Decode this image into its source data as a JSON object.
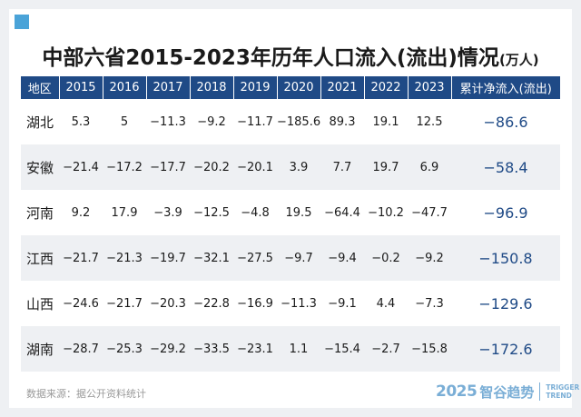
{
  "title": "中部六省2015-2023年历年人口流入(流出)情况",
  "title_unit": "(万人)",
  "columns": [
    "地区",
    "2015",
    "2016",
    "2017",
    "2018",
    "2019",
    "2020",
    "2021",
    "2022",
    "2023",
    "累计净流入(流出)"
  ],
  "rows": [
    [
      "湖北",
      "5.3",
      "5",
      "−11.3",
      "−9.2",
      "−11.7",
      "−185.6",
      "89.3",
      "19.1",
      "12.5",
      "−86.6"
    ],
    [
      "安徽",
      "−21.4",
      "−17.2",
      "−17.7",
      "−20.2",
      "−20.1",
      "3.9",
      "7.7",
      "19.7",
      "6.9",
      "−58.4"
    ],
    [
      "河南",
      "9.2",
      "17.9",
      "−3.9",
      "−12.5",
      "−4.8",
      "19.5",
      "−64.4",
      "−10.2",
      "−47.7",
      "−96.9"
    ],
    [
      "江西",
      "−21.7",
      "−21.3",
      "−19.7",
      "−32.1",
      "−27.5",
      "−9.7",
      "−9.4",
      "−0.2",
      "−9.2",
      "−150.8"
    ],
    [
      "山西",
      "−24.6",
      "−21.7",
      "−20.3",
      "−22.8",
      "−16.9",
      "−11.3",
      "−9.1",
      "4.4",
      "−7.3",
      "−129.6"
    ],
    [
      "湖南",
      "−28.7",
      "−25.3",
      "−29.2",
      "−33.5",
      "−23.1",
      "1.1",
      "−15.4",
      "−2.7",
      "−15.8",
      "−172.6"
    ]
  ],
  "source": "数据来源：据公开资料统计",
  "logo": {
    "year": "2025",
    "name_cn": "智谷趋势",
    "name_en_line1": "TRIGGER",
    "name_en_line2": "TREND"
  },
  "colors": {
    "header_bg": "#1f4a86",
    "stripe_bg": "#eef0f3",
    "total_text": "#1f4a86",
    "corner_accent": "#4aa3d8",
    "logo": "#7aaed6"
  }
}
